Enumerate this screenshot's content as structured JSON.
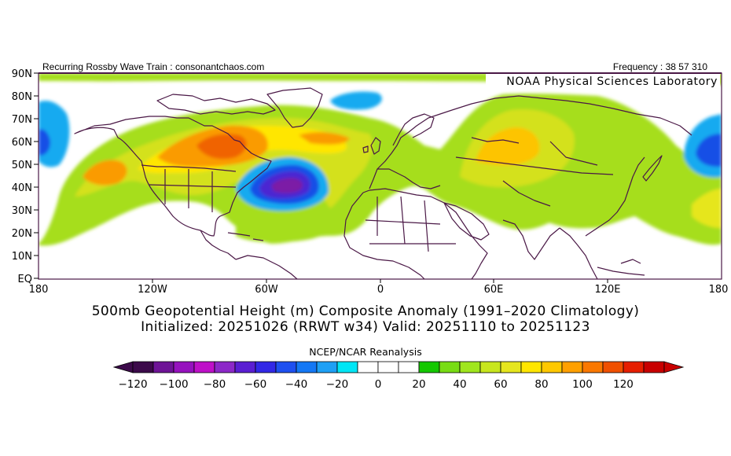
{
  "header": {
    "left": "Recurring Rossby Wave Train : consonantchaos.com",
    "right": "Frequency : 38 57 310",
    "lab": "NOAA Physical Sciences Laboratory"
  },
  "map": {
    "lat_labels": [
      "90N",
      "80N",
      "70N",
      "60N",
      "50N",
      "40N",
      "30N",
      "20N",
      "10N",
      "EQ"
    ],
    "lon_labels": [
      "180",
      "120W",
      "60W",
      "0",
      "60E",
      "120E",
      "180"
    ],
    "colors": {
      "boundary": "#4a1846",
      "yellow_green": "#a6de1c",
      "khaki": "#d4e11f",
      "yellow": "#ffe600",
      "orange_light": "#fdc400",
      "orange": "#fa9b00",
      "red_orange": "#f06400",
      "cyan": "#14aaf0",
      "blue": "#1850e6",
      "indigo": "#4b28d2",
      "purple": "#7b1ea6"
    }
  },
  "titles": {
    "line1": "500mb Geopotential Height (m) Composite Anomaly (1991–2020 Climatology)",
    "line2": "Initialized: 20251026 (RRWT w34) Valid: 20251110 to 20251123"
  },
  "colorbar": {
    "title": "NCEP/NCAR Reanalysis",
    "tick_labels": [
      "-120",
      "-100",
      "-80",
      "-60",
      "-40",
      "-20",
      "0",
      "20",
      "40",
      "60",
      "80",
      "100",
      "120"
    ],
    "colors": [
      "#3c0a4a",
      "#6e1496",
      "#9612be",
      "#be10c8",
      "#8c28c8",
      "#5a1ed2",
      "#3228e6",
      "#1e50f0",
      "#1478f5",
      "#1ea0f5",
      "#00e6f5",
      "#ffffff",
      "#ffffff",
      "#ffffff",
      "#14c800",
      "#78dc14",
      "#a0e61e",
      "#c8e61e",
      "#e6e61e",
      "#ffe600",
      "#ffc800",
      "#ffa000",
      "#fa7800",
      "#f05000",
      "#e61e00",
      "#c80000"
    ]
  }
}
